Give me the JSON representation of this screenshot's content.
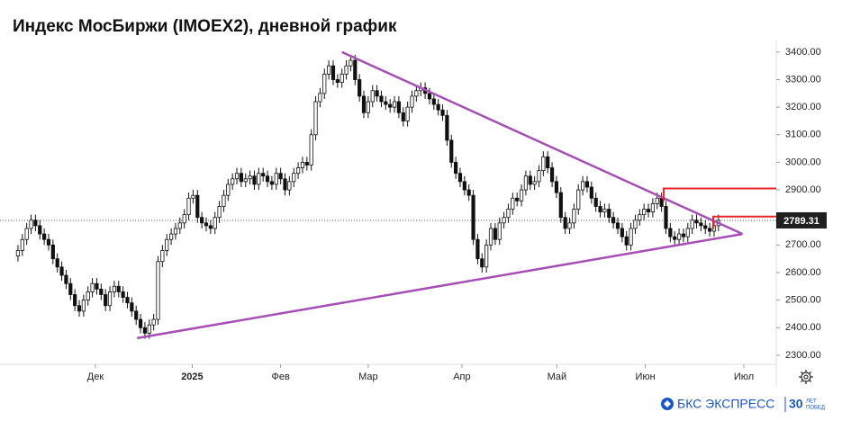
{
  "chart_data": {
    "type": "candlestick",
    "title": "Индекс МосБиржи (IMOEX2), дневной график",
    "open": [
      2660,
      2680,
      2720,
      2760,
      2790,
      2770,
      2740,
      2720,
      2700,
      2650,
      2620,
      2590,
      2560,
      2520,
      2480,
      2460,
      2500,
      2530,
      2560,
      2540,
      2520,
      2480,
      2530,
      2550,
      2530,
      2510,
      2490,
      2460,
      2430,
      2400,
      2380,
      2410,
      2430,
      2640,
      2680,
      2720,
      2740,
      2760,
      2780,
      2810,
      2870,
      2880,
      2800,
      2780,
      2770,
      2760,
      2800,
      2840,
      2880,
      2920,
      2940,
      2960,
      2930,
      2940,
      2950,
      2920,
      2960,
      2950,
      2930,
      2920,
      2960,
      2940,
      2900,
      2930,
      2960,
      2980,
      3000,
      2990,
      3100,
      3220,
      3250,
      3320,
      3350,
      3300,
      3290,
      3320,
      3350,
      3370,
      3300,
      3240,
      3180,
      3220,
      3260,
      3240,
      3220,
      3210,
      3200,
      3220,
      3180,
      3150,
      3200,
      3240,
      3260,
      3270,
      3250,
      3230,
      3210,
      3190,
      3170,
      3080,
      3000,
      2960,
      2930,
      2900,
      2880,
      2720,
      2650,
      2620,
      2700,
      2760,
      2720,
      2780,
      2800,
      2830,
      2870,
      2860,
      2900,
      2950,
      2920,
      2930,
      2970,
      3020,
      2980,
      2930,
      2890,
      2800,
      2760,
      2780,
      2830,
      2900,
      2930,
      2910,
      2870,
      2840,
      2820,
      2830,
      2800,
      2780,
      2760,
      2730,
      2700,
      2760,
      2790,
      2810,
      2830,
      2820,
      2850,
      2870,
      2840,
      2760,
      2730,
      2720,
      2740,
      2730,
      2760,
      2790,
      2780,
      2770,
      2760,
      2750,
      2770
    ],
    "high": [
      2700,
      2740,
      2780,
      2810,
      2810,
      2790,
      2760,
      2740,
      2720,
      2670,
      2640,
      2610,
      2580,
      2540,
      2500,
      2520,
      2550,
      2580,
      2580,
      2560,
      2540,
      2550,
      2570,
      2570,
      2550,
      2530,
      2510,
      2480,
      2450,
      2420,
      2430,
      2450,
      2660,
      2700,
      2740,
      2760,
      2780,
      2800,
      2830,
      2890,
      2900,
      2900,
      2820,
      2800,
      2790,
      2820,
      2860,
      2900,
      2940,
      2960,
      2980,
      2980,
      2960,
      2970,
      2970,
      2980,
      2980,
      2970,
      2950,
      2980,
      2980,
      2960,
      2950,
      2980,
      3000,
      3020,
      3020,
      3120,
      3240,
      3270,
      3340,
      3370,
      3370,
      3320,
      3340,
      3370,
      3390,
      3390,
      3320,
      3260,
      3240,
      3280,
      3280,
      3260,
      3240,
      3230,
      3240,
      3240,
      3200,
      3220,
      3260,
      3280,
      3290,
      3290,
      3270,
      3250,
      3230,
      3210,
      3190,
      3100,
      3020,
      2980,
      2950,
      2920,
      2900,
      2740,
      2670,
      2720,
      2780,
      2780,
      2800,
      2820,
      2850,
      2890,
      2890,
      2920,
      2970,
      2970,
      2950,
      2990,
      3040,
      3040,
      3000,
      2950,
      2910,
      2820,
      2800,
      2850,
      2920,
      2950,
      2950,
      2930,
      2890,
      2860,
      2850,
      2850,
      2820,
      2800,
      2780,
      2750,
      2780,
      2810,
      2830,
      2850,
      2850,
      2870,
      2890,
      2890,
      2860,
      2780,
      2750,
      2760,
      2760,
      2780,
      2810,
      2810,
      2800,
      2790,
      2780,
      2790,
      2810
    ],
    "low": [
      2640,
      2660,
      2700,
      2740,
      2750,
      2720,
      2700,
      2680,
      2630,
      2600,
      2570,
      2540,
      2500,
      2460,
      2440,
      2440,
      2480,
      2510,
      2520,
      2500,
      2460,
      2460,
      2510,
      2510,
      2490,
      2470,
      2440,
      2410,
      2380,
      2360,
      2360,
      2390,
      2410,
      2620,
      2660,
      2700,
      2720,
      2740,
      2760,
      2790,
      2850,
      2780,
      2760,
      2750,
      2740,
      2740,
      2780,
      2820,
      2860,
      2900,
      2920,
      2910,
      2910,
      2920,
      2900,
      2900,
      2930,
      2910,
      2900,
      2900,
      2920,
      2880,
      2880,
      2910,
      2940,
      2960,
      2970,
      2970,
      3080,
      3200,
      3230,
      3300,
      3280,
      3270,
      3270,
      3300,
      3330,
      3280,
      3220,
      3160,
      3160,
      3200,
      3220,
      3200,
      3190,
      3180,
      3180,
      3160,
      3130,
      3130,
      3180,
      3220,
      3240,
      3230,
      3210,
      3190,
      3170,
      3150,
      3060,
      2980,
      2940,
      2910,
      2880,
      2860,
      2700,
      2630,
      2600,
      2600,
      2680,
      2700,
      2700,
      2760,
      2780,
      2810,
      2840,
      2840,
      2880,
      2900,
      2900,
      2910,
      2950,
      2960,
      2910,
      2870,
      2780,
      2740,
      2740,
      2760,
      2810,
      2880,
      2890,
      2850,
      2820,
      2800,
      2800,
      2780,
      2760,
      2740,
      2710,
      2680,
      2680,
      2740,
      2770,
      2790,
      2800,
      2800,
      2830,
      2820,
      2740,
      2710,
      2700,
      2700,
      2710,
      2710,
      2740,
      2760,
      2750,
      2740,
      2730,
      2730,
      2750
    ],
    "close": [
      2680,
      2720,
      2760,
      2790,
      2770,
      2740,
      2720,
      2700,
      2650,
      2620,
      2590,
      2560,
      2520,
      2480,
      2460,
      2500,
      2530,
      2560,
      2540,
      2520,
      2480,
      2530,
      2550,
      2530,
      2510,
      2490,
      2460,
      2430,
      2400,
      2380,
      2410,
      2430,
      2640,
      2680,
      2720,
      2740,
      2760,
      2780,
      2810,
      2870,
      2880,
      2800,
      2780,
      2770,
      2760,
      2800,
      2840,
      2880,
      2920,
      2940,
      2960,
      2930,
      2940,
      2950,
      2920,
      2960,
      2950,
      2930,
      2920,
      2960,
      2940,
      2900,
      2930,
      2960,
      2980,
      3000,
      2990,
      3100,
      3220,
      3250,
      3320,
      3350,
      3300,
      3290,
      3320,
      3350,
      3370,
      3300,
      3240,
      3180,
      3220,
      3260,
      3240,
      3220,
      3210,
      3200,
      3220,
      3180,
      3150,
      3200,
      3240,
      3260,
      3270,
      3250,
      3230,
      3210,
      3190,
      3170,
      3080,
      3000,
      2960,
      2930,
      2900,
      2880,
      2720,
      2650,
      2620,
      2700,
      2760,
      2720,
      2780,
      2800,
      2830,
      2870,
      2860,
      2900,
      2950,
      2920,
      2930,
      2970,
      3020,
      2980,
      2930,
      2890,
      2800,
      2760,
      2780,
      2830,
      2900,
      2930,
      2910,
      2870,
      2840,
      2820,
      2830,
      2800,
      2780,
      2760,
      2730,
      2700,
      2760,
      2790,
      2810,
      2830,
      2820,
      2850,
      2870,
      2840,
      2760,
      2730,
      2720,
      2740,
      2730,
      2760,
      2790,
      2780,
      2770,
      2760,
      2750,
      2770,
      2789.31
    ],
    "up_color": "#ffffff",
    "down_color": "#111111",
    "edge_color": "#111111",
    "xlim": [
      -4.1,
      173.2
    ],
    "xticks": [
      {
        "value": 17.7,
        "label": "Дек"
      },
      {
        "value": 39.8,
        "label": "2025"
      },
      {
        "value": 60,
        "label": "Фев"
      },
      {
        "value": 80,
        "label": "Мар"
      },
      {
        "value": 101.4,
        "label": "Апр"
      },
      {
        "value": 123.1,
        "label": "Май"
      },
      {
        "value": 143.3,
        "label": "Июн"
      },
      {
        "value": 165.8,
        "label": "Июл"
      }
    ],
    "ylim": [
      2267,
      3442
    ],
    "yticks": [
      {
        "value": 2300,
        "label": "2300.00"
      },
      {
        "value": 2400,
        "label": "2400.00"
      },
      {
        "value": 2500,
        "label": "2500.00"
      },
      {
        "value": 2600,
        "label": "2600.00"
      },
      {
        "value": 2700,
        "label": "2700.00"
      },
      {
        "value": 2800,
        "label": "2800.00"
      },
      {
        "value": 2900,
        "label": "2900.00"
      },
      {
        "value": 3000,
        "label": "3000.00"
      },
      {
        "value": 3100,
        "label": "3100.00"
      },
      {
        "value": 3200,
        "label": "3200.00"
      },
      {
        "value": 3300,
        "label": "3300.00"
      },
      {
        "value": 3400,
        "label": "3400.00"
      }
    ],
    "trendlines": [
      {
        "x": [
          74,
          165.5
        ],
        "y": [
          3400,
          2740
        ],
        "color": "#a64fb5"
      },
      {
        "x": [
          27.2,
          165.5
        ],
        "y": [
          2362,
          2740
        ],
        "color": "#a64fb5"
      }
    ],
    "levels": [
      {
        "x": 147.5,
        "value": 2905,
        "color": "#e8262a"
      },
      {
        "x": 158.8,
        "value": 2803,
        "color": "#e8262a"
      }
    ]
  },
  "footer": {
    "brand": "БКС ЭКСПРЕСС",
    "years": "30",
    "motto_1": "ЛЕТ",
    "motto_2": "ПОБЕД"
  }
}
